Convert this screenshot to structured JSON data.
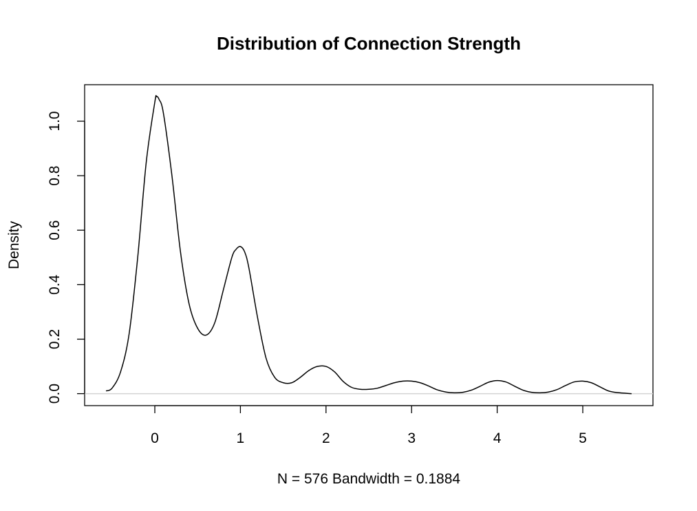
{
  "chart_data": {
    "type": "line",
    "title": "Distribution of Connection Strength",
    "xlabel": "N = 576   Bandwidth = 0.1884",
    "ylabel": "Density",
    "xlim": [
      -0.82,
      5.82
    ],
    "ylim": [
      -0.044,
      1.134
    ],
    "xticks": [
      0,
      1,
      2,
      3,
      4,
      5
    ],
    "yticks": [
      0.0,
      0.2,
      0.4,
      0.6,
      0.8,
      1.0
    ],
    "ytick_labels": [
      "0.0",
      "0.2",
      "0.4",
      "0.6",
      "0.8",
      "1.0"
    ],
    "baseline_color": "#d3d3d3",
    "line_color": "#000000",
    "grid": false,
    "series": [
      {
        "x": [
          -0.57,
          -0.5,
          -0.4,
          -0.3,
          -0.2,
          -0.1,
          0.0,
          0.02,
          0.05,
          0.1,
          0.2,
          0.3,
          0.4,
          0.5,
          0.6,
          0.7,
          0.8,
          0.9,
          0.95,
          1.0,
          1.05,
          1.1,
          1.2,
          1.3,
          1.4,
          1.5,
          1.6,
          1.7,
          1.8,
          1.9,
          2.0,
          2.1,
          2.2,
          2.3,
          2.4,
          2.5,
          2.6,
          2.7,
          2.8,
          2.9,
          3.0,
          3.1,
          3.2,
          3.3,
          3.4,
          3.5,
          3.6,
          3.7,
          3.8,
          3.9,
          4.0,
          4.1,
          4.2,
          4.3,
          4.4,
          4.5,
          4.6,
          4.7,
          4.8,
          4.9,
          5.0,
          5.1,
          5.2,
          5.3,
          5.4,
          5.57
        ],
        "y": [
          0.01,
          0.02,
          0.08,
          0.22,
          0.5,
          0.85,
          1.07,
          1.09,
          1.08,
          1.03,
          0.8,
          0.52,
          0.33,
          0.24,
          0.215,
          0.26,
          0.38,
          0.5,
          0.53,
          0.54,
          0.52,
          0.46,
          0.28,
          0.13,
          0.06,
          0.04,
          0.04,
          0.06,
          0.085,
          0.1,
          0.1,
          0.08,
          0.045,
          0.023,
          0.016,
          0.016,
          0.02,
          0.03,
          0.04,
          0.046,
          0.046,
          0.04,
          0.028,
          0.014,
          0.006,
          0.003,
          0.005,
          0.013,
          0.027,
          0.042,
          0.048,
          0.043,
          0.028,
          0.013,
          0.005,
          0.003,
          0.006,
          0.015,
          0.03,
          0.043,
          0.046,
          0.04,
          0.025,
          0.01,
          0.004,
          0.0
        ]
      }
    ]
  }
}
